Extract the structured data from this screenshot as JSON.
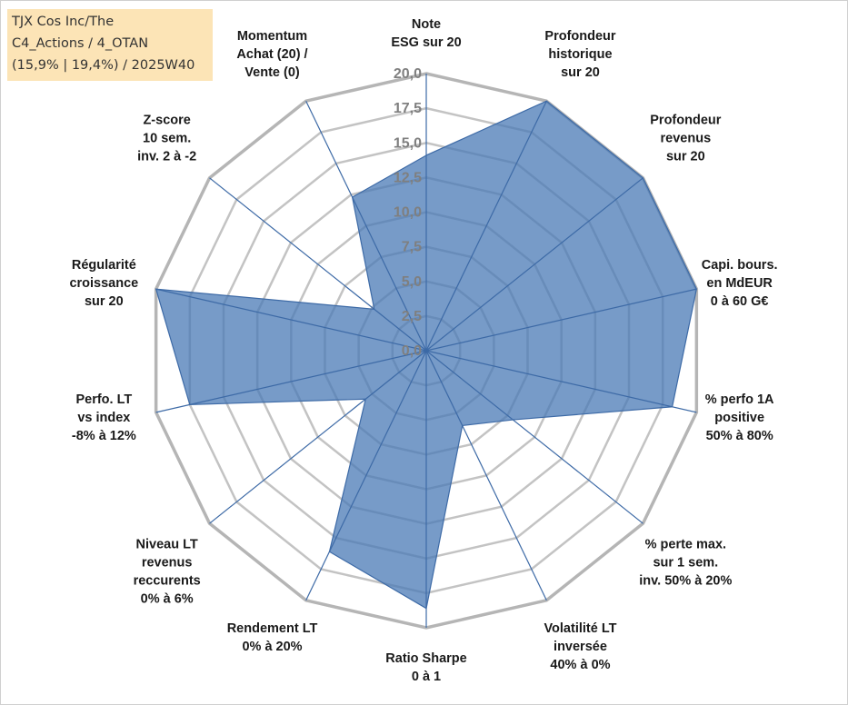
{
  "title_box": {
    "lines": [
      "TJX Cos Inc/The",
      "C4_Actions / 4_OTAN",
      "(15,9% | 19,4%) / 2025W40"
    ]
  },
  "chart_data": {
    "type": "radar",
    "rmin": 0,
    "rmax": 20,
    "ticks": [
      "0,0",
      "2,5",
      "5,0",
      "7,5",
      "10,0",
      "12,5",
      "15,0",
      "17,5",
      "20,0"
    ],
    "grid": true,
    "categories": [
      "Note ESG sur 20",
      "Profondeur historique sur 20",
      "Profondeur revenus sur 20",
      "Capi. bours. en MdEUR 0 à 60 G€",
      "% perfo 1A positive 50% à 80%",
      "% perte max. sur 1 sem. inv. 50% à 20%",
      "Volatilité LT inversée 40% à 0%",
      "Ratio Sharpe 0 à 1",
      "Rendement LT 0% à 20%",
      "Niveau LT revenus reccurents 0% à 6%",
      "Perfo. LT vs index -8% à 12%",
      "Régularité croissance sur 20",
      "Z-score 10 sem. inv. 2 à -2",
      "Momentum Achat (20) / Vente (0)"
    ],
    "category_label_lines": [
      [
        "Note",
        "ESG sur 20"
      ],
      [
        "Profondeur",
        "historique",
        "sur 20"
      ],
      [
        "Profondeur",
        "revenus",
        "sur 20"
      ],
      [
        "Capi. bours.",
        "en MdEUR",
        "0 à 60 G€"
      ],
      [
        "% perfo 1A",
        "positive",
        "50% à 80%"
      ],
      [
        "% perte max.",
        "sur 1 sem.",
        "inv. 50% à 20%"
      ],
      [
        "Volatilité LT",
        "inversée",
        "40% à 0%"
      ],
      [
        "Ratio Sharpe",
        "0 à 1"
      ],
      [
        "Rendement LT",
        "0% à 20%"
      ],
      [
        "Niveau LT",
        "revenus",
        "reccurents",
        "0% à 6%"
      ],
      [
        "Perfo. LT",
        "vs index",
        "-8% à 12%"
      ],
      [
        "Régularité",
        "croissance",
        "sur 20"
      ],
      [
        "Z-score",
        "10 sem.",
        "inv. 2 à -2"
      ],
      [
        "Momentum",
        "Achat (20) /",
        "Vente (0)"
      ]
    ],
    "series": [
      {
        "values": [
          14.1,
          20.0,
          20.0,
          20.0,
          18.2,
          8.0,
          6.0,
          18.6,
          16.1,
          5.6,
          17.5,
          20.0,
          4.8,
          12.3
        ]
      }
    ],
    "colors": {
      "fill": "#4a7ab5",
      "fill_opacity": 0.75,
      "outline": "#3d6aa6",
      "spoke": "#3d6aa6",
      "grid": "#c3c3c3",
      "outer_grid": "#b5b5b5",
      "tick_text": "#7f7f7f",
      "label_text": "#1a1a1a",
      "title_box_bg": "#fce4b6"
    }
  }
}
